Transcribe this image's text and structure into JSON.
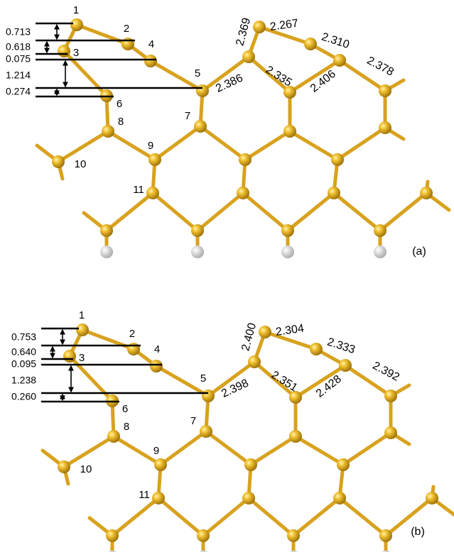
{
  "panels": [
    {
      "label": "(a)",
      "atom_labels": [
        "1",
        "2",
        "3",
        "4",
        "5",
        "6",
        "7",
        "8",
        "9",
        "10",
        "11"
      ],
      "bond_lengths": [
        "2.369",
        "2.267",
        "2.310",
        "2.378",
        "2.386",
        "2.335",
        "2.406"
      ],
      "heights": [
        "0.713",
        "0.618",
        "0.075",
        "1.214",
        "0.274"
      ]
    },
    {
      "label": "(b)",
      "atom_labels": [
        "1",
        "2",
        "3",
        "4",
        "5",
        "6",
        "7",
        "8",
        "9",
        "10",
        "11"
      ],
      "bond_lengths": [
        "2.400",
        "2.304",
        "2.333",
        "2.392",
        "2.398",
        "2.351",
        "2.428"
      ],
      "heights": [
        "0.753",
        "0.640",
        "0.095",
        "1.238",
        "0.260"
      ]
    }
  ]
}
